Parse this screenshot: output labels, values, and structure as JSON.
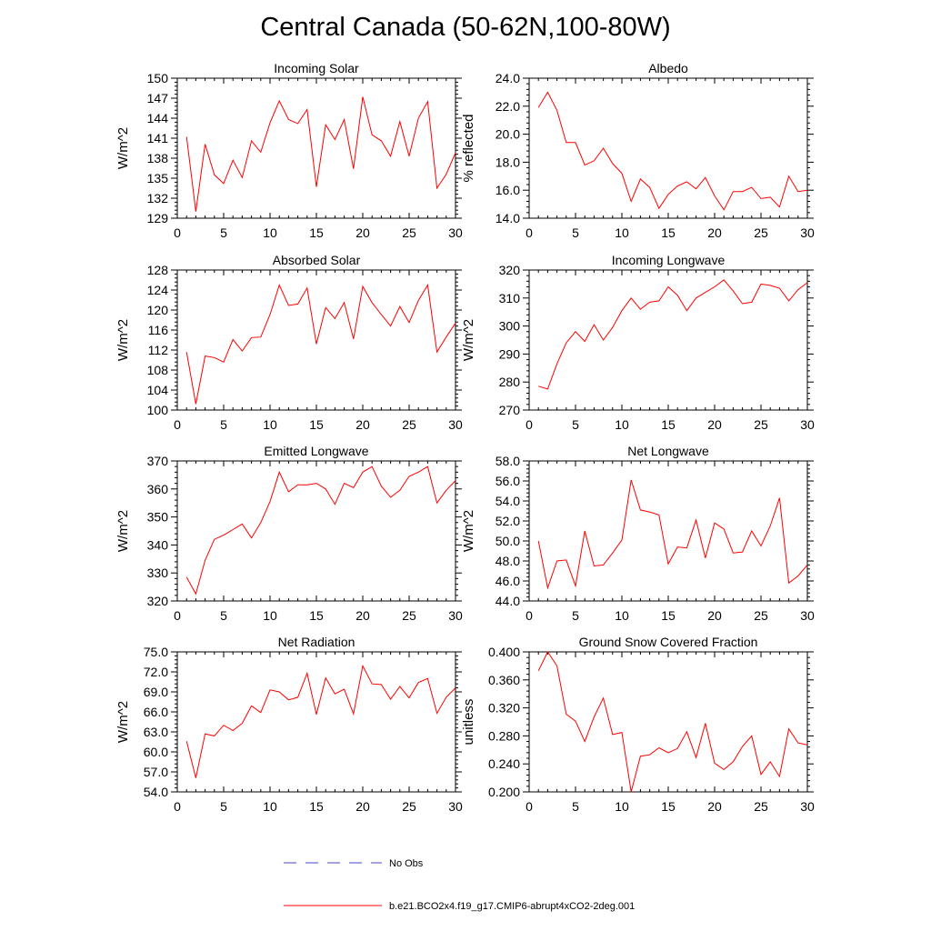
{
  "page": {
    "title": "Central Canada (50-62N,100-80W)"
  },
  "legend": {
    "obs_label": "No Obs",
    "obs_color": "#4444cc",
    "model_label": "b.e21.BCO2x4.f19_g17.CMIP6-abrupt4xCO2-2deg.001",
    "model_color": "#ff0000"
  },
  "chart_data": [
    {
      "type": "line",
      "title": "Incoming Solar",
      "ylabel": "W/m^2",
      "xlim": [
        0,
        30
      ],
      "ylim": [
        129,
        150
      ],
      "xticks": [
        0,
        5,
        10,
        15,
        20,
        25,
        30
      ],
      "xtick_labels": [
        "0",
        "5",
        "10",
        "15",
        "20",
        "25",
        "30"
      ],
      "yticks": [
        129,
        132,
        135,
        138,
        141,
        144,
        147,
        150
      ],
      "ytick_labels": [
        "129",
        "132",
        "135",
        "138",
        "141",
        "144",
        "147",
        "150"
      ],
      "x": [
        1,
        2,
        3,
        4,
        5,
        6,
        7,
        8,
        9,
        10,
        11,
        12,
        13,
        14,
        15,
        16,
        17,
        18,
        19,
        20,
        21,
        22,
        23,
        24,
        25,
        26,
        27,
        28,
        29,
        30
      ],
      "values": [
        141.2,
        130.0,
        140.1,
        135.5,
        134.2,
        137.7,
        135.1,
        140.6,
        138.9,
        143.3,
        146.6,
        143.8,
        143.2,
        145.3,
        133.7,
        143.0,
        140.8,
        143.8,
        136.4,
        147.2,
        141.5,
        140.6,
        138.3,
        143.5,
        138.3,
        144.0,
        146.5,
        133.5,
        135.6,
        138.8
      ]
    },
    {
      "type": "line",
      "title": "Albedo",
      "ylabel": "% reflected",
      "xlim": [
        0,
        30
      ],
      "ylim": [
        14.0,
        24.0
      ],
      "xticks": [
        0,
        5,
        10,
        15,
        20,
        25,
        30
      ],
      "xtick_labels": [
        "0",
        "5",
        "10",
        "15",
        "20",
        "25",
        "30"
      ],
      "yticks": [
        14,
        16,
        18,
        20,
        22,
        24
      ],
      "ytick_labels": [
        "14.0",
        "16.0",
        "18.0",
        "20.0",
        "22.0",
        "24.0"
      ],
      "x": [
        1,
        2,
        3,
        4,
        5,
        6,
        7,
        8,
        9,
        10,
        11,
        12,
        13,
        14,
        15,
        16,
        17,
        18,
        19,
        20,
        21,
        22,
        23,
        24,
        25,
        26,
        27,
        28,
        29,
        30
      ],
      "values": [
        21.9,
        23.0,
        21.7,
        19.4,
        19.4,
        17.8,
        18.1,
        19.0,
        17.9,
        17.2,
        15.2,
        16.8,
        16.2,
        14.7,
        15.7,
        16.3,
        16.6,
        16.1,
        16.9,
        15.6,
        14.6,
        15.9,
        15.9,
        16.2,
        15.4,
        15.5,
        14.8,
        17.0,
        15.9,
        16.0
      ]
    },
    {
      "type": "line",
      "title": "Absorbed Solar",
      "ylabel": "W/m^2",
      "xlim": [
        0,
        30
      ],
      "ylim": [
        100,
        128
      ],
      "xticks": [
        0,
        5,
        10,
        15,
        20,
        25,
        30
      ],
      "xtick_labels": [
        "0",
        "5",
        "10",
        "15",
        "20",
        "25",
        "30"
      ],
      "yticks": [
        100,
        104,
        108,
        112,
        116,
        120,
        124,
        128
      ],
      "ytick_labels": [
        "100",
        "104",
        "108",
        "112",
        "116",
        "120",
        "124",
        "128"
      ],
      "x": [
        1,
        2,
        3,
        4,
        5,
        6,
        7,
        8,
        9,
        10,
        11,
        12,
        13,
        14,
        15,
        16,
        17,
        18,
        19,
        20,
        21,
        22,
        23,
        24,
        25,
        26,
        27,
        28,
        29,
        30
      ],
      "values": [
        111.6,
        101.2,
        110.8,
        110.5,
        109.6,
        114.1,
        111.8,
        114.5,
        114.6,
        119.1,
        125.0,
        120.9,
        121.2,
        124.4,
        113.2,
        120.5,
        118.3,
        121.5,
        114.2,
        124.7,
        121.5,
        119.1,
        116.8,
        120.7,
        117.5,
        121.9,
        125.0,
        111.6,
        114.6,
        117.4
      ]
    },
    {
      "type": "line",
      "title": "Incoming Longwave",
      "ylabel": "W/m^2",
      "xlim": [
        0,
        30
      ],
      "ylim": [
        270,
        320
      ],
      "xticks": [
        0,
        5,
        10,
        15,
        20,
        25,
        30
      ],
      "xtick_labels": [
        "0",
        "5",
        "10",
        "15",
        "20",
        "25",
        "30"
      ],
      "yticks": [
        270,
        280,
        290,
        300,
        310,
        320
      ],
      "ytick_labels": [
        "270",
        "280",
        "290",
        "300",
        "310",
        "320"
      ],
      "x": [
        1,
        2,
        3,
        4,
        5,
        6,
        7,
        8,
        9,
        10,
        11,
        12,
        13,
        14,
        15,
        16,
        17,
        18,
        19,
        20,
        21,
        22,
        23,
        24,
        25,
        26,
        27,
        28,
        29,
        30
      ],
      "values": [
        278.5,
        277.5,
        286.5,
        294.0,
        298.0,
        294.5,
        300.5,
        295.0,
        299.5,
        305.5,
        310.0,
        306.0,
        308.5,
        309.0,
        314.0,
        311.0,
        305.5,
        310.0,
        312.0,
        314.0,
        316.5,
        312.5,
        308.0,
        308.5,
        315.0,
        314.5,
        313.5,
        309.0,
        313.0,
        315.5
      ]
    },
    {
      "type": "line",
      "title": "Emitted Longwave",
      "ylabel": "W/m^2",
      "xlim": [
        0,
        30
      ],
      "ylim": [
        320,
        370
      ],
      "xticks": [
        0,
        5,
        10,
        15,
        20,
        25,
        30
      ],
      "xtick_labels": [
        "0",
        "5",
        "10",
        "15",
        "20",
        "25",
        "30"
      ],
      "yticks": [
        320,
        330,
        340,
        350,
        360,
        370
      ],
      "ytick_labels": [
        "320",
        "330",
        "340",
        "350",
        "360",
        "370"
      ],
      "x": [
        1,
        2,
        3,
        4,
        5,
        6,
        7,
        8,
        9,
        10,
        11,
        12,
        13,
        14,
        15,
        16,
        17,
        18,
        19,
        20,
        21,
        22,
        23,
        24,
        25,
        26,
        27,
        28,
        29,
        30
      ],
      "values": [
        328.5,
        322.5,
        334.5,
        342.0,
        343.5,
        345.5,
        347.5,
        342.5,
        348.0,
        355.5,
        366.0,
        359.0,
        361.5,
        361.5,
        362.0,
        360.0,
        354.5,
        362.0,
        360.5,
        366.0,
        368.0,
        361.0,
        357.0,
        359.5,
        364.5,
        366.0,
        368.0,
        355.0,
        359.5,
        363.0
      ]
    },
    {
      "type": "line",
      "title": "Net Longwave",
      "ylabel": "W/m^2",
      "xlim": [
        0,
        30
      ],
      "ylim": [
        44.0,
        58.0
      ],
      "xticks": [
        0,
        5,
        10,
        15,
        20,
        25,
        30
      ],
      "xtick_labels": [
        "0",
        "5",
        "10",
        "15",
        "20",
        "25",
        "30"
      ],
      "yticks": [
        44,
        46,
        48,
        50,
        52,
        54,
        56,
        58
      ],
      "ytick_labels": [
        "44.0",
        "46.0",
        "48.0",
        "50.0",
        "52.0",
        "54.0",
        "56.0",
        "58.0"
      ],
      "x": [
        1,
        2,
        3,
        4,
        5,
        6,
        7,
        8,
        9,
        10,
        11,
        12,
        13,
        14,
        15,
        16,
        17,
        18,
        19,
        20,
        21,
        22,
        23,
        24,
        25,
        26,
        27,
        28,
        29,
        30
      ],
      "values": [
        50.0,
        45.3,
        48.0,
        48.1,
        45.5,
        51.0,
        47.5,
        47.6,
        48.8,
        50.1,
        56.1,
        53.1,
        52.9,
        52.6,
        47.7,
        49.4,
        49.3,
        52.1,
        48.3,
        51.8,
        51.2,
        48.8,
        48.9,
        51.0,
        49.5,
        51.5,
        54.3,
        45.8,
        46.5,
        47.6
      ]
    },
    {
      "type": "line",
      "title": "Net Radiation",
      "ylabel": "W/m^2",
      "xlim": [
        0,
        30
      ],
      "ylim": [
        54.0,
        75.0
      ],
      "xticks": [
        0,
        5,
        10,
        15,
        20,
        25,
        30
      ],
      "xtick_labels": [
        "0",
        "5",
        "10",
        "15",
        "20",
        "25",
        "30"
      ],
      "yticks": [
        54,
        57,
        60,
        63,
        66,
        69,
        72,
        75
      ],
      "ytick_labels": [
        "54.0",
        "57.0",
        "60.0",
        "63.0",
        "66.0",
        "69.0",
        "72.0",
        "75.0"
      ],
      "x": [
        1,
        2,
        3,
        4,
        5,
        6,
        7,
        8,
        9,
        10,
        11,
        12,
        13,
        14,
        15,
        16,
        17,
        18,
        19,
        20,
        21,
        22,
        23,
        24,
        25,
        26,
        27,
        28,
        29,
        30
      ],
      "values": [
        61.6,
        56.1,
        62.7,
        62.4,
        64.0,
        63.2,
        64.3,
        66.9,
        65.9,
        69.3,
        69.0,
        67.8,
        68.2,
        71.8,
        65.6,
        71.1,
        68.7,
        69.4,
        65.7,
        72.9,
        70.2,
        70.1,
        67.9,
        69.8,
        68.1,
        70.4,
        71.0,
        65.8,
        68.2,
        69.6
      ]
    },
    {
      "type": "line",
      "title": "Ground Snow Covered Fraction",
      "ylabel": "unitless",
      "xlim": [
        0,
        30
      ],
      "ylim": [
        0.2,
        0.4
      ],
      "xticks": [
        0,
        5,
        10,
        15,
        20,
        25,
        30
      ],
      "xtick_labels": [
        "0",
        "5",
        "10",
        "15",
        "20",
        "25",
        "30"
      ],
      "yticks": [
        0.2,
        0.24,
        0.28,
        0.32,
        0.36,
        0.4
      ],
      "ytick_labels": [
        "0.200",
        "0.240",
        "0.280",
        "0.320",
        "0.360",
        "0.400"
      ],
      "x": [
        1,
        2,
        3,
        4,
        5,
        6,
        7,
        8,
        9,
        10,
        11,
        12,
        13,
        14,
        15,
        16,
        17,
        18,
        19,
        20,
        21,
        22,
        23,
        24,
        25,
        26,
        27,
        28,
        29,
        30
      ],
      "values": [
        0.373,
        0.4,
        0.38,
        0.311,
        0.301,
        0.272,
        0.307,
        0.334,
        0.282,
        0.285,
        0.2,
        0.251,
        0.253,
        0.263,
        0.256,
        0.262,
        0.286,
        0.249,
        0.298,
        0.241,
        0.232,
        0.243,
        0.265,
        0.28,
        0.225,
        0.243,
        0.222,
        0.29,
        0.27,
        0.267
      ]
    }
  ]
}
